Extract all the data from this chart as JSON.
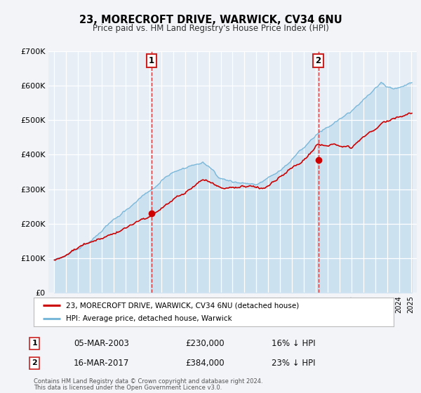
{
  "title": "23, MORECROFT DRIVE, WARWICK, CV34 6NU",
  "subtitle": "Price paid vs. HM Land Registry's House Price Index (HPI)",
  "hpi_label": "HPI: Average price, detached house, Warwick",
  "price_label": "23, MORECROFT DRIVE, WARWICK, CV34 6NU (detached house)",
  "footer1": "Contains HM Land Registry data © Crown copyright and database right 2024.",
  "footer2": "This data is licensed under the Open Government Licence v3.0.",
  "ylim": [
    0,
    700000
  ],
  "yticks": [
    0,
    100000,
    200000,
    300000,
    400000,
    500000,
    600000,
    700000
  ],
  "ytick_labels": [
    "£0",
    "£100K",
    "£200K",
    "£300K",
    "£400K",
    "£500K",
    "£600K",
    "£700K"
  ],
  "marker1_x_year": 2003.18,
  "marker1_y": 230000,
  "marker2_x_year": 2017.21,
  "marker2_y": 384000,
  "annotation1_date": "05-MAR-2003",
  "annotation1_price": "£230,000",
  "annotation1_hpi": "16% ↓ HPI",
  "annotation2_date": "16-MAR-2017",
  "annotation2_price": "£384,000",
  "annotation2_hpi": "23% ↓ HPI",
  "hpi_color": "#7ab8d9",
  "hpi_fill_color": "#c8dff0",
  "price_color": "#cc0000",
  "bg_color": "#f2f4f8",
  "plot_bg_color": "#e8eef6",
  "grid_color": "#ffffff",
  "marker_box_color": "#cc2222",
  "xtick_start": 1995,
  "xtick_end": 2025
}
